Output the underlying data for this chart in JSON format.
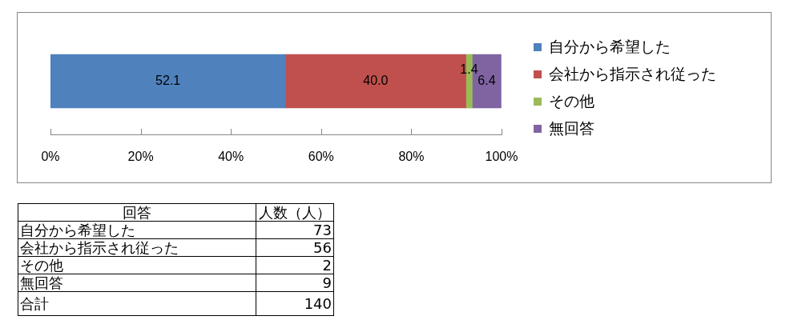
{
  "chart_data": [
    {
      "type": "bar",
      "orientation": "horizontal",
      "stacked": true,
      "categories": [
        null
      ],
      "series": [
        {
          "name": "自分から希望した",
          "color": "#4f81bd",
          "values": [
            52.1
          ],
          "value_labels": [
            "52.1"
          ]
        },
        {
          "name": "会社から指示され従った",
          "color": "#c0504d",
          "values": [
            40.0
          ],
          "value_labels": [
            "40.0"
          ]
        },
        {
          "name": "その他",
          "color": "#9bbb59",
          "values": [
            1.4
          ],
          "value_labels": [
            "1.4"
          ]
        },
        {
          "name": "無回答",
          "color": "#8064a2",
          "values": [
            6.4
          ],
          "value_labels": [
            "6.4"
          ]
        }
      ],
      "xlim": [
        0,
        100
      ],
      "xticks": [
        {
          "value": 0,
          "label": "0%"
        },
        {
          "value": 20,
          "label": "20%"
        },
        {
          "value": 40,
          "label": "40%"
        },
        {
          "value": 60,
          "label": "60%"
        },
        {
          "value": 80,
          "label": "80%"
        },
        {
          "value": 100,
          "label": "100%"
        }
      ],
      "legend": "right"
    },
    {
      "type": "other",
      "xlabel": "回答",
      "ylabel": "人数（人）",
      "categories": [
        "自分から希望した",
        "会社から指示され従った",
        "その他",
        "無回答",
        "合計"
      ],
      "values": [
        73,
        56,
        2,
        9,
        140
      ],
      "data_labels": true
    }
  ]
}
